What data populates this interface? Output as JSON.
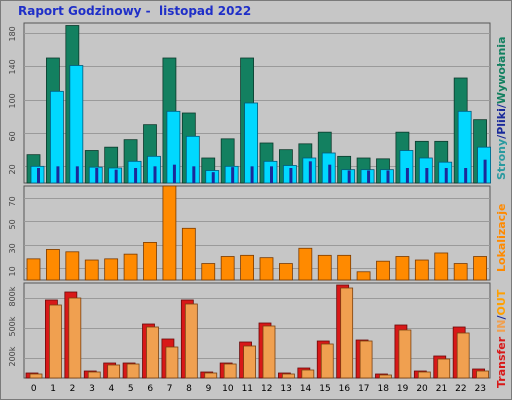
{
  "header": {
    "title": "Raport Godzinowy -  listopad 2022"
  },
  "labels": {
    "pages_visits": {
      "strony": "Strony",
      "slash1": "/",
      "pliki": "Pliki",
      "slash2": "/",
      "wywolania": "Wywołania"
    },
    "lokalizacje": "Lokalizacje",
    "transfer": {
      "transfer": "Transfer",
      "in": "IN",
      "slash": "/",
      "out": "OUT"
    }
  },
  "colors": {
    "background": "#c6c6c6",
    "title": "#1f2fc8",
    "wywolania": "#138060",
    "pliki": "#00d8ff",
    "strony": "#1a2a9a",
    "lokalizacje": "#ff8a00",
    "transfer": "#d81818",
    "in": "#f0a050",
    "out": "#ffa000"
  },
  "chart_data": [
    {
      "type": "bar",
      "panel": "top",
      "categories": [
        "0",
        "1",
        "2",
        "3",
        "4",
        "5",
        "6",
        "7",
        "8",
        "9",
        "10",
        "11",
        "12",
        "13",
        "14",
        "15",
        "16",
        "17",
        "18",
        "19",
        "20",
        "21",
        "22",
        "23"
      ],
      "y_ticks": [
        "20",
        "60",
        "100",
        "140",
        "180"
      ],
      "ylim": [
        0,
        192
      ],
      "series": [
        {
          "name": "Wywołania",
          "values": [
            34,
            150,
            189,
            39,
            43,
            52,
            70,
            150,
            84,
            30,
            53,
            150,
            48,
            40,
            47,
            61,
            32,
            30,
            29,
            61,
            50,
            50,
            126,
            76
          ]
        },
        {
          "name": "Pliki",
          "values": [
            20,
            110,
            141,
            19,
            18,
            26,
            32,
            86,
            56,
            15,
            20,
            96,
            26,
            21,
            30,
            36,
            16,
            16,
            16,
            39,
            30,
            25,
            86,
            43
          ]
        },
        {
          "name": "Strony",
          "values": [
            18,
            20,
            20,
            18,
            16,
            18,
            20,
            22,
            20,
            13,
            19,
            20,
            20,
            18,
            26,
            22,
            15,
            15,
            15,
            18,
            18,
            18,
            18,
            28
          ]
        }
      ]
    },
    {
      "type": "bar",
      "panel": "middle",
      "categories": [
        "0",
        "1",
        "2",
        "3",
        "4",
        "5",
        "6",
        "7",
        "8",
        "9",
        "10",
        "11",
        "12",
        "13",
        "14",
        "15",
        "16",
        "17",
        "18",
        "19",
        "20",
        "21",
        "22",
        "23"
      ],
      "y_ticks": [
        "10",
        "30",
        "50",
        "70"
      ],
      "ylim": [
        0,
        80
      ],
      "series": [
        {
          "name": "Lokalizacje",
          "values": [
            18,
            26,
            24,
            17,
            18,
            22,
            32,
            80,
            44,
            14,
            20,
            21,
            19,
            14,
            27,
            21,
            21,
            7,
            16,
            20,
            17,
            23,
            14,
            20
          ]
        }
      ]
    },
    {
      "type": "bar",
      "panel": "bottom",
      "categories": [
        "0",
        "1",
        "2",
        "3",
        "4",
        "5",
        "6",
        "7",
        "8",
        "9",
        "10",
        "11",
        "12",
        "13",
        "14",
        "15",
        "16",
        "17",
        "18",
        "19",
        "20",
        "21",
        "22",
        "23"
      ],
      "y_ticks": [
        "200k",
        "500k",
        "800k"
      ],
      "ylim": [
        0,
        950000
      ],
      "series": [
        {
          "name": "Transfer",
          "values": [
            50000,
            780000,
            860000,
            70000,
            150000,
            150000,
            540000,
            390000,
            780000,
            60000,
            150000,
            360000,
            550000,
            50000,
            100000,
            370000,
            930000,
            380000,
            40000,
            530000,
            70000,
            220000,
            510000,
            90000
          ]
        },
        {
          "name": "IN/OUT",
          "values": [
            40000,
            730000,
            800000,
            60000,
            130000,
            140000,
            510000,
            310000,
            740000,
            50000,
            140000,
            320000,
            520000,
            40000,
            80000,
            340000,
            900000,
            370000,
            30000,
            480000,
            60000,
            190000,
            450000,
            70000
          ]
        }
      ]
    }
  ]
}
